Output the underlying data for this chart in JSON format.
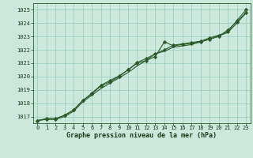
{
  "background_color": "#cce8dc",
  "grid_color": "#99ccbb",
  "line_color": "#2d5a2d",
  "marker_color": "#2d5a2d",
  "xlabel": "Graphe pression niveau de la mer (hPa)",
  "xlabel_color": "#1a3a1a",
  "ylabel_color": "#1a3a1a",
  "xlim": [
    -0.5,
    23.5
  ],
  "ylim": [
    1016.5,
    1025.5
  ],
  "yticks": [
    1017,
    1018,
    1019,
    1020,
    1021,
    1022,
    1023,
    1024,
    1025
  ],
  "xticks": [
    0,
    1,
    2,
    3,
    4,
    5,
    6,
    7,
    8,
    9,
    10,
    11,
    12,
    13,
    14,
    15,
    16,
    17,
    18,
    19,
    20,
    21,
    22,
    23
  ],
  "series1": [
    1016.7,
    1016.8,
    1016.8,
    1017.1,
    1017.5,
    1018.2,
    1018.7,
    1019.3,
    1019.6,
    1020.0,
    1020.5,
    1021.0,
    1021.2,
    1021.5,
    1022.6,
    1022.3,
    1022.4,
    1022.5,
    1022.6,
    1022.8,
    1023.0,
    1023.5,
    1024.1,
    1024.8
  ],
  "series2": [
    1016.7,
    1016.85,
    1016.85,
    1017.1,
    1017.5,
    1018.2,
    1018.75,
    1019.35,
    1019.7,
    1020.05,
    1020.5,
    1021.05,
    1021.35,
    1021.7,
    1022.0,
    1022.35,
    1022.45,
    1022.55,
    1022.65,
    1022.9,
    1023.1,
    1023.35,
    1024.2,
    1025.0
  ],
  "series3": [
    1016.7,
    1016.8,
    1016.8,
    1017.0,
    1017.4,
    1018.1,
    1018.6,
    1019.1,
    1019.5,
    1019.9,
    1020.3,
    1020.8,
    1021.2,
    1021.7,
    1021.9,
    1022.2,
    1022.3,
    1022.4,
    1022.6,
    1022.8,
    1023.05,
    1023.3,
    1024.0,
    1024.75
  ],
  "tick_fontsize": 5.0,
  "xlabel_fontsize": 6.0,
  "figsize": [
    3.2,
    2.0
  ],
  "dpi": 100
}
